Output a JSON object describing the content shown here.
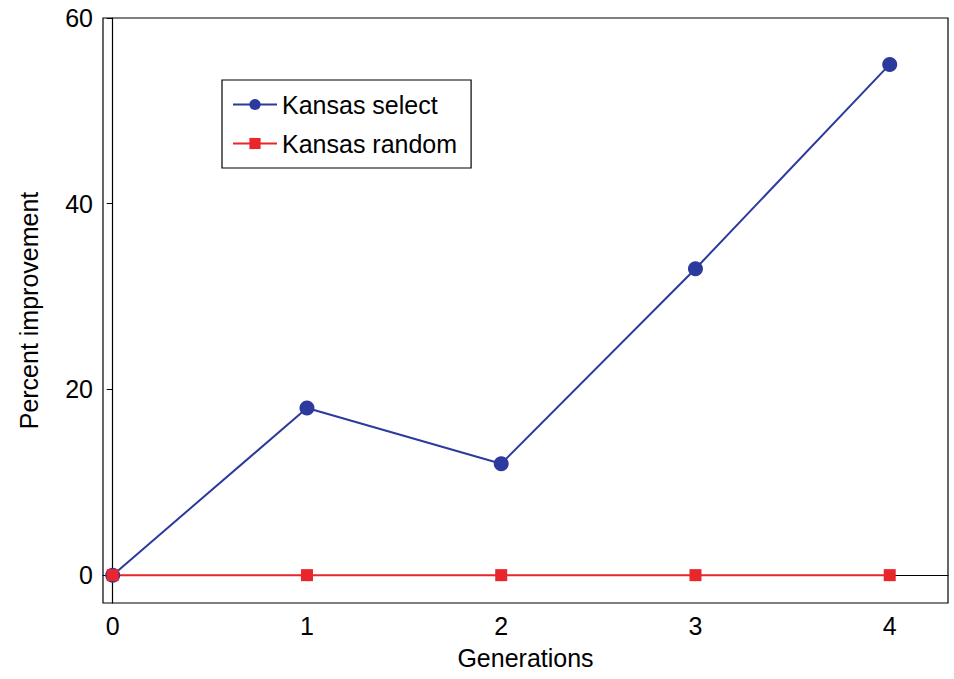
{
  "chart_data": {
    "type": "line",
    "x_label": "Generations",
    "y_label": "Percent improvement",
    "x": [
      0,
      1,
      2,
      3,
      4
    ],
    "series": [
      {
        "name": "Kansas select",
        "color": "#2b3a9c",
        "marker": "circle",
        "values": [
          0,
          18,
          12,
          33,
          55
        ]
      },
      {
        "name": "Kansas random",
        "color": "#e8262c",
        "marker": "square",
        "values": [
          0,
          0,
          0,
          0,
          0
        ]
      }
    ],
    "xlim": [
      -0.05,
      4.3
    ],
    "xticks": [
      0,
      1,
      2,
      3,
      4
    ],
    "ylim": [
      -3,
      60
    ],
    "yticks": [
      0,
      20,
      40,
      60
    ],
    "grid": false,
    "legend": "upper left"
  }
}
